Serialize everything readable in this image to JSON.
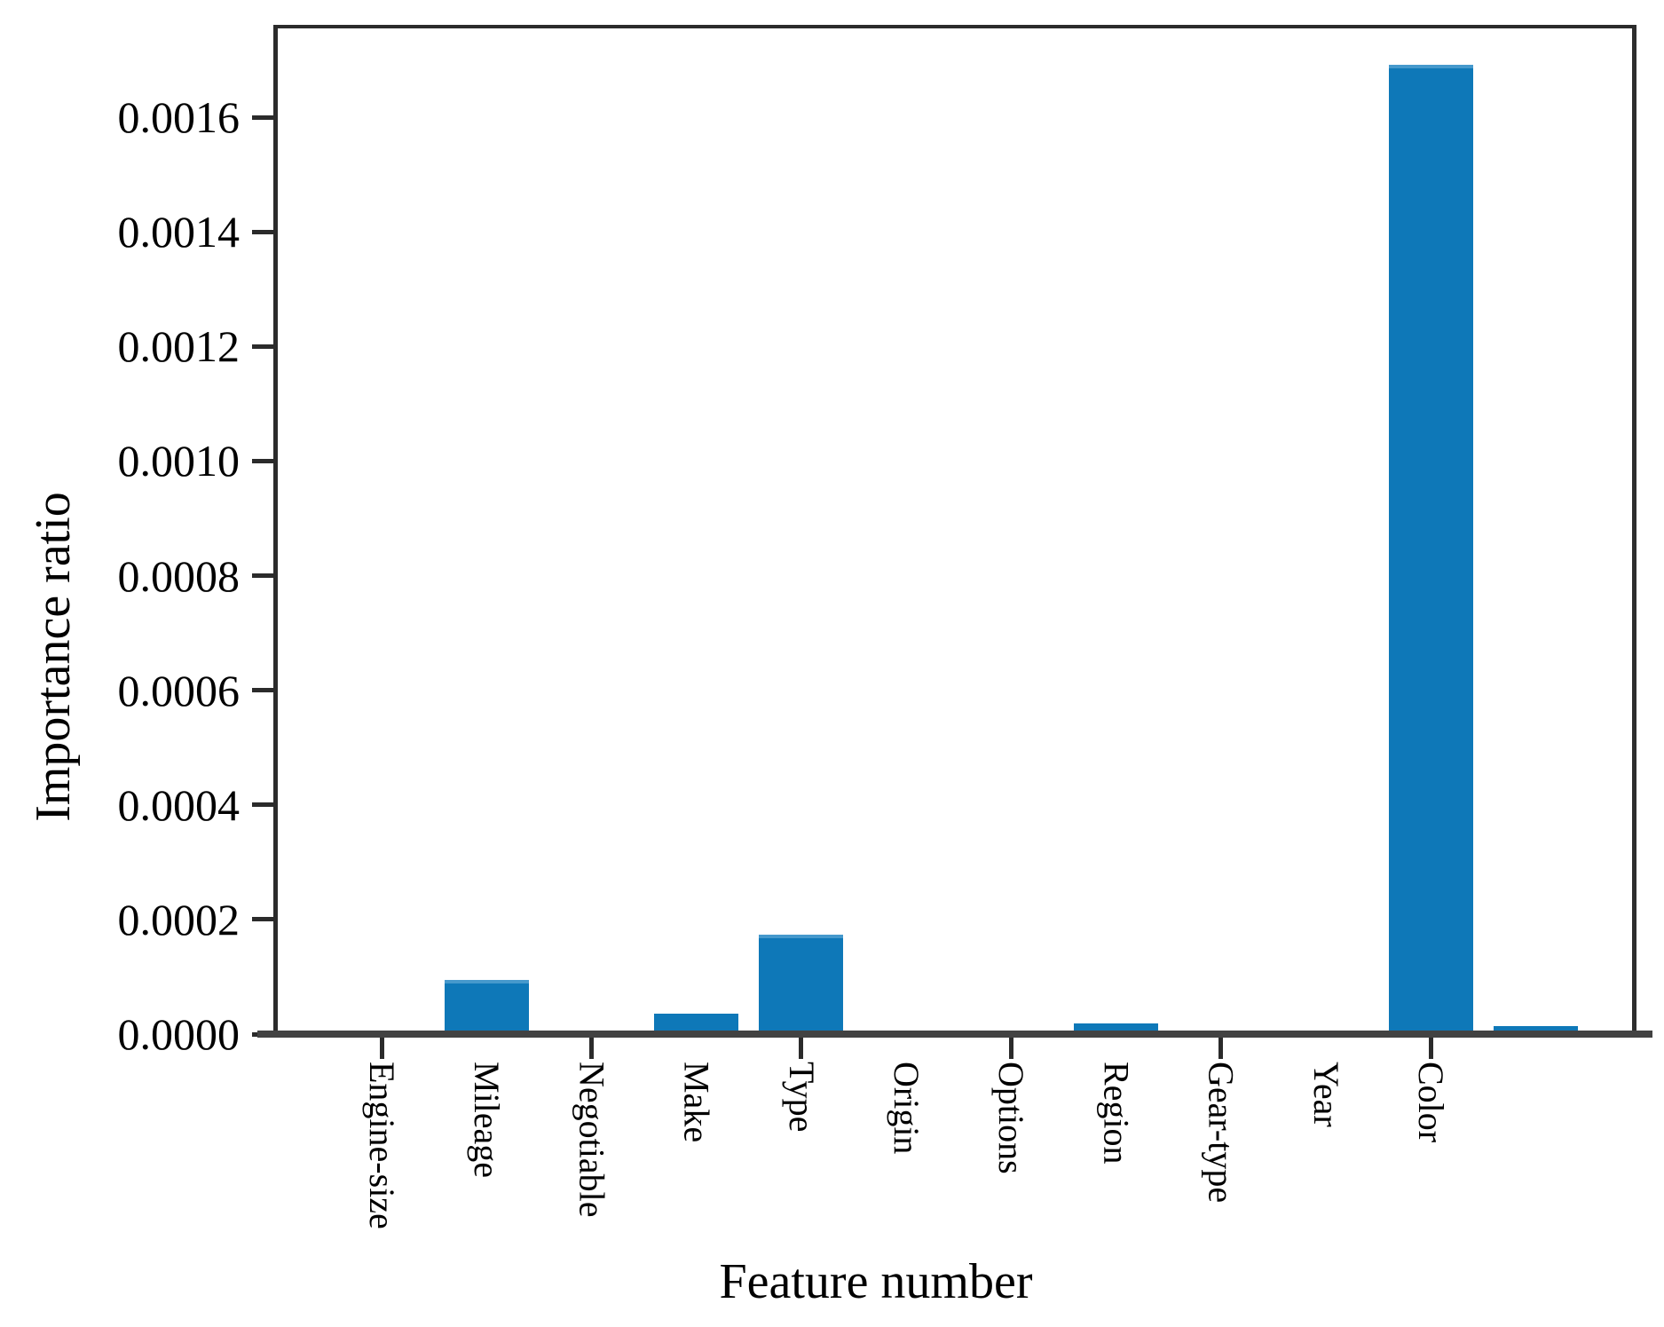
{
  "figure": {
    "background": "#ffffff",
    "text_color": "#000000",
    "spine_color": "#2b2b2b",
    "baseline_color": "#424242"
  },
  "chart_data": {
    "type": "bar",
    "title": "",
    "xlabel": "Feature number",
    "ylabel": "Importance ratio",
    "categories": [
      "Engine-size",
      "Mileage",
      "Negotiable",
      "Make",
      "Type",
      "Origin",
      "Options",
      "Region",
      "Gear-type",
      "Year",
      "Color",
      ""
    ],
    "values": [
      0,
      8.8e-05,
      0,
      2.9e-05,
      0.000167,
      0,
      0,
      1.2e-05,
      0,
      0,
      0.001685,
      8e-06
    ],
    "bar_color": "#0e78b8",
    "bar_edge_highlight": "#4699cc",
    "ylim": [
      0,
      0.001766
    ],
    "yticks": [
      0,
      0.0002,
      0.0004,
      0.0006,
      0.0008,
      0.001,
      0.0012,
      0.0014,
      0.0016
    ],
    "ytick_label_format": "4dp",
    "xtick_mark_indices": [
      0,
      2,
      4,
      6,
      8,
      10
    ],
    "grid": false,
    "legend": null
  }
}
